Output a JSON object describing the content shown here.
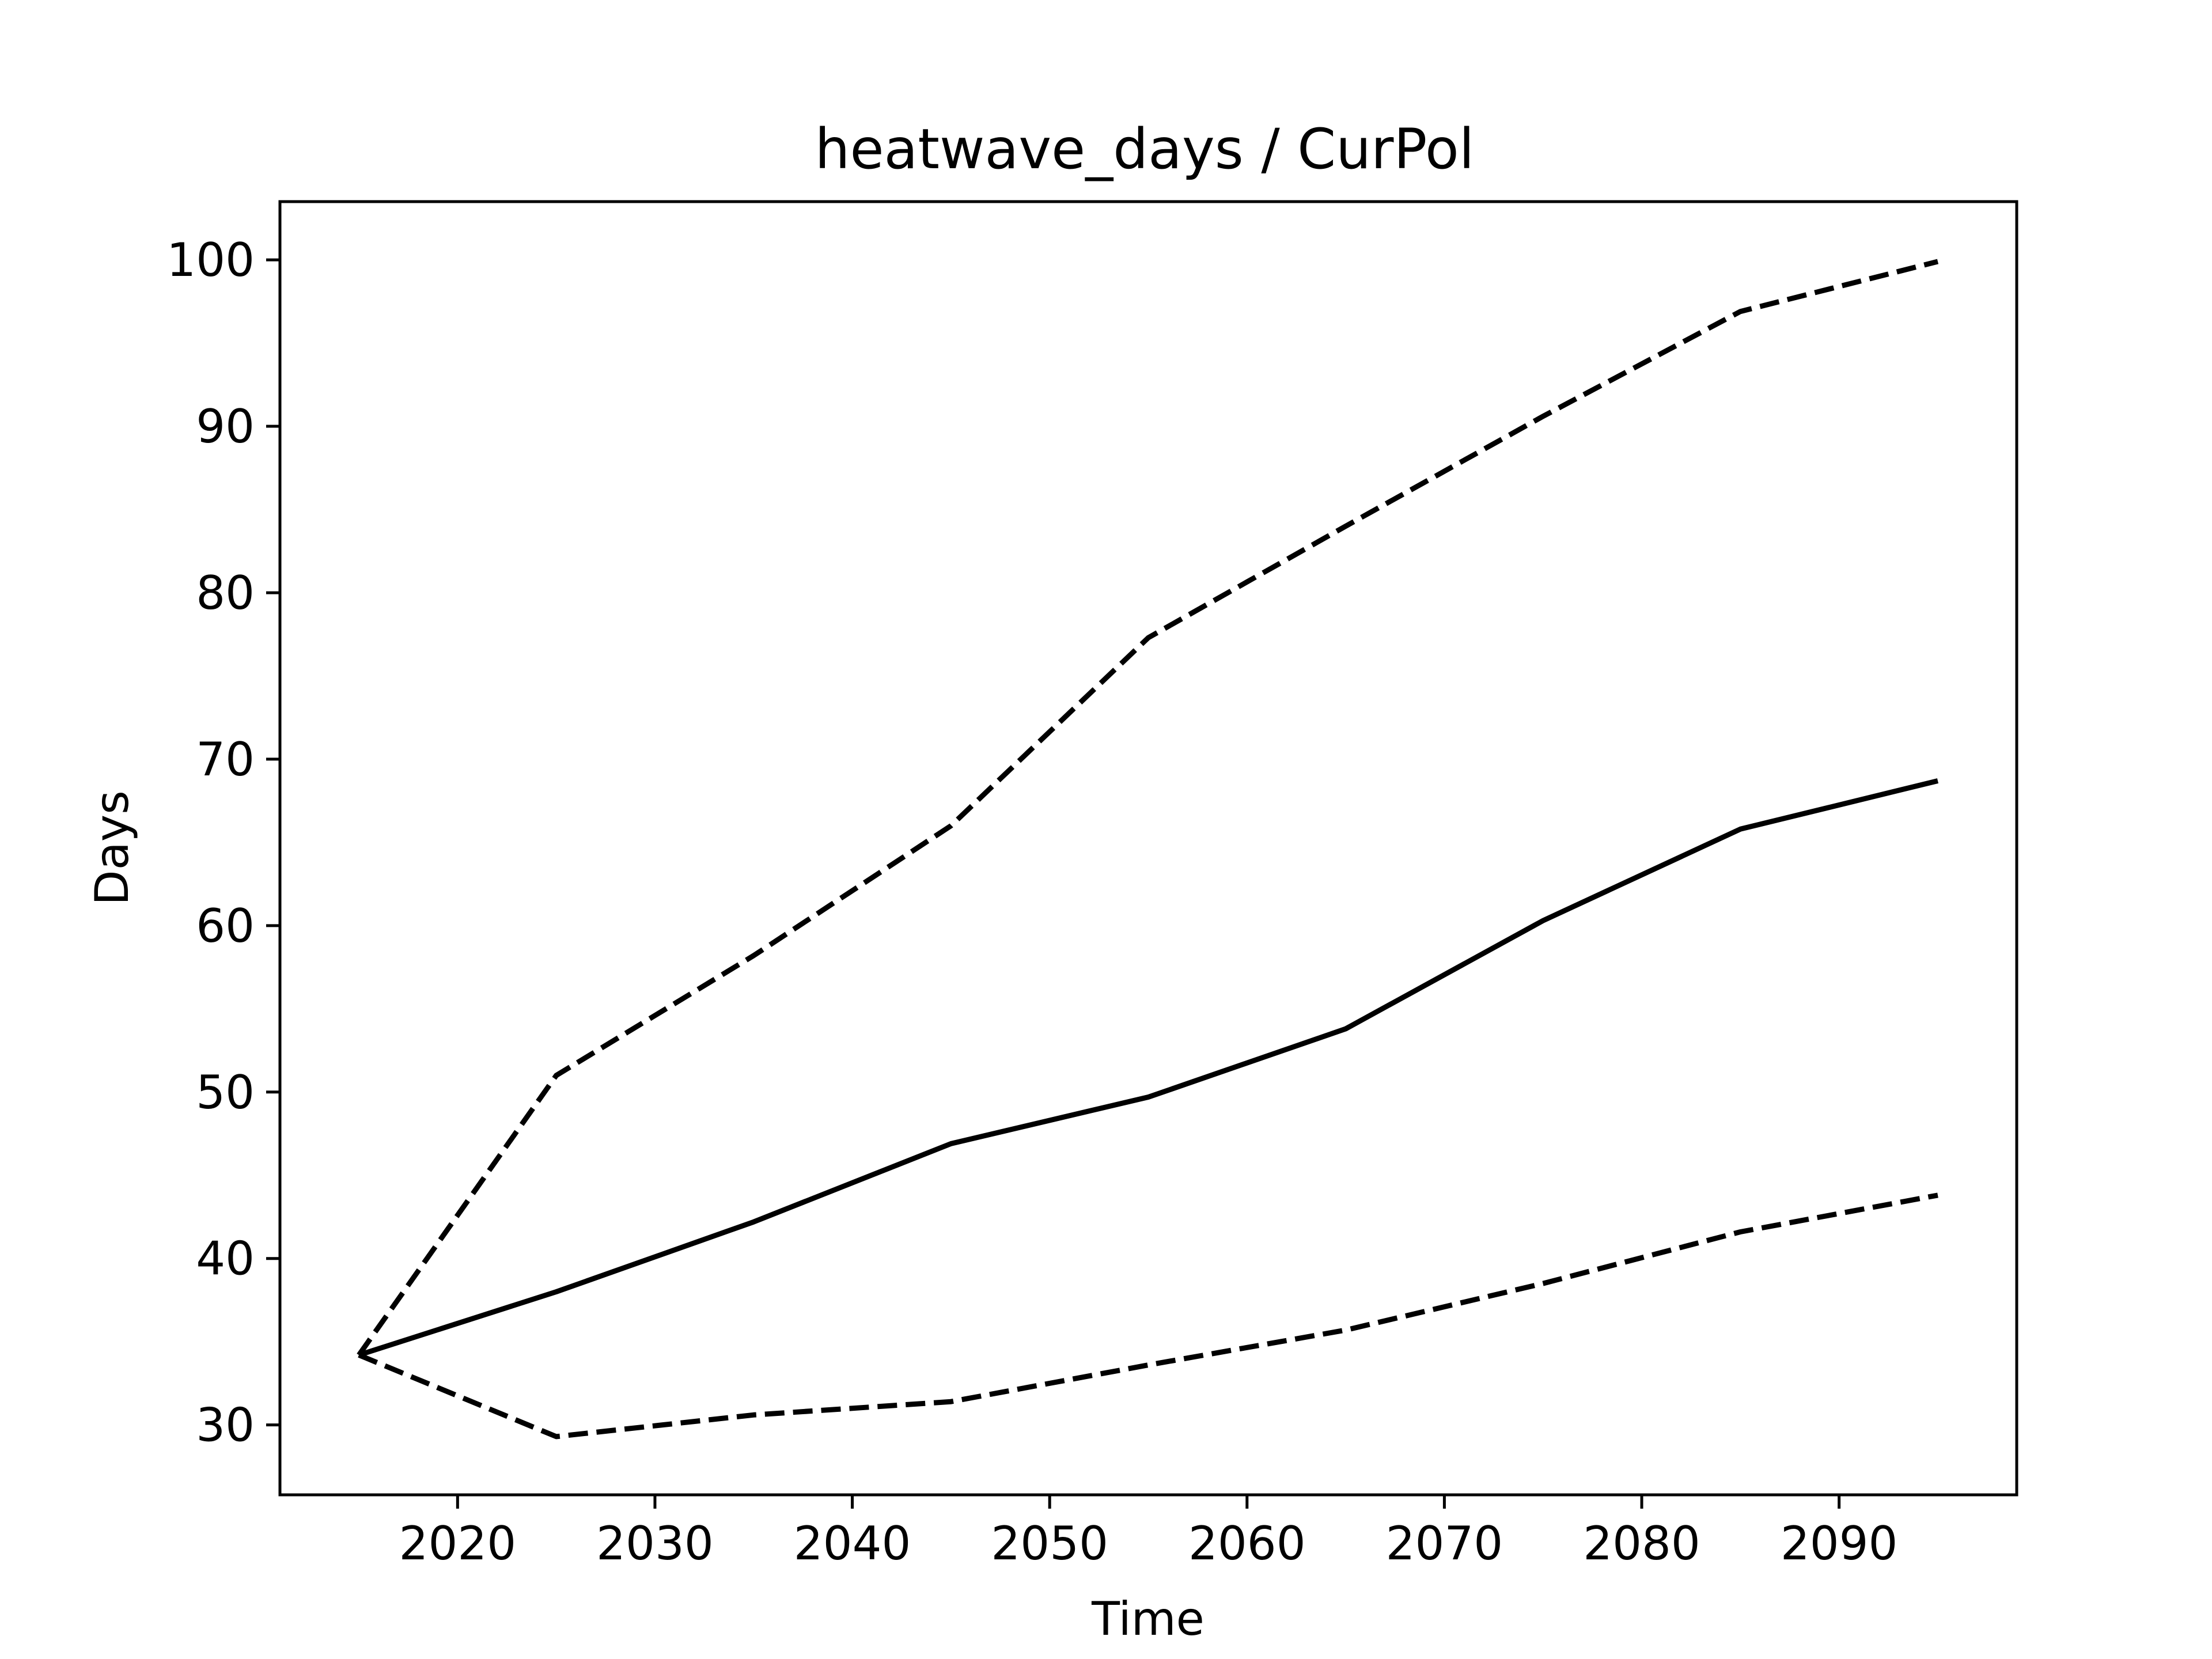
{
  "chart_data": {
    "type": "line",
    "title": "heatwave_days / CurPol",
    "xlabel": "Time",
    "ylabel": "Days",
    "x": [
      2015,
      2025,
      2035,
      2045,
      2055,
      2065,
      2075,
      2085,
      2095
    ],
    "xlim": [
      2011,
      2099
    ],
    "ylim": [
      25.8,
      103.5
    ],
    "xticks": [
      "2020",
      "2030",
      "2040",
      "2050",
      "2060",
      "2070",
      "2080",
      "2090"
    ],
    "yticks": [
      "30",
      "40",
      "50",
      "60",
      "70",
      "80",
      "90",
      "100"
    ],
    "grid": false,
    "legend": "none",
    "series": [
      {
        "values": [
          34.2,
          51.0,
          58.2,
          66.0,
          77.3,
          84.0,
          90.6,
          96.9,
          99.9
        ],
        "style": "dashed",
        "color": "#000000"
      },
      {
        "values": [
          34.2,
          38.0,
          42.2,
          46.9,
          49.7,
          53.8,
          60.3,
          65.8,
          68.7
        ],
        "style": "solid",
        "color": "#000000"
      },
      {
        "values": [
          34.2,
          29.3,
          30.6,
          31.4,
          33.6,
          35.7,
          38.5,
          41.6,
          43.8
        ],
        "style": "dashed",
        "color": "#000000"
      }
    ]
  }
}
